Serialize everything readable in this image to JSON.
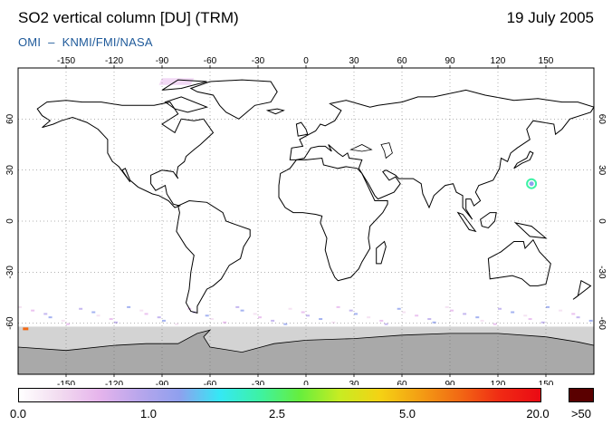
{
  "header": {
    "title": "SO2 vertical column [DU] (TRM)",
    "date": "19 July 2005",
    "credit_org": "OMI",
    "credit_dash": "–",
    "credit_inst": "KNMI/FMI/NASA"
  },
  "map": {
    "lon_ticks": [
      "-150",
      "-120",
      "-90",
      "-60",
      "-30",
      "0",
      "30",
      "60",
      "90",
      "120",
      "150"
    ],
    "lon_values": [
      -150,
      -120,
      -90,
      -60,
      -30,
      0,
      30,
      60,
      90,
      120,
      150
    ],
    "lat_ticks": [
      "60",
      "30",
      "0",
      "-30",
      "-60"
    ],
    "lat_values": [
      60,
      30,
      0,
      -30,
      -60
    ],
    "lon_range": [
      -180,
      180
    ],
    "lat_range": [
      -90,
      90
    ],
    "no_data_color": "#d3d3d3",
    "antarctica_color": "#a9a9a9",
    "coastline_color": "#000000",
    "grid": "dotted"
  },
  "colorbar": {
    "labels": [
      "0.0",
      "1.0",
      "2.5",
      "5.0",
      "20.0"
    ],
    "overflow_label": ">50",
    "overflow_color": "#5a0000",
    "stops": [
      "#ffffff",
      "#f2dcf0",
      "#e6b4ec",
      "#b8a6ec",
      "#8fa0ee",
      "#35e8f5",
      "#3df2a4",
      "#66ee3d",
      "#c8ec22",
      "#f4d214",
      "#f39e14",
      "#f26814",
      "#f02a14",
      "#ea0a14"
    ]
  }
}
